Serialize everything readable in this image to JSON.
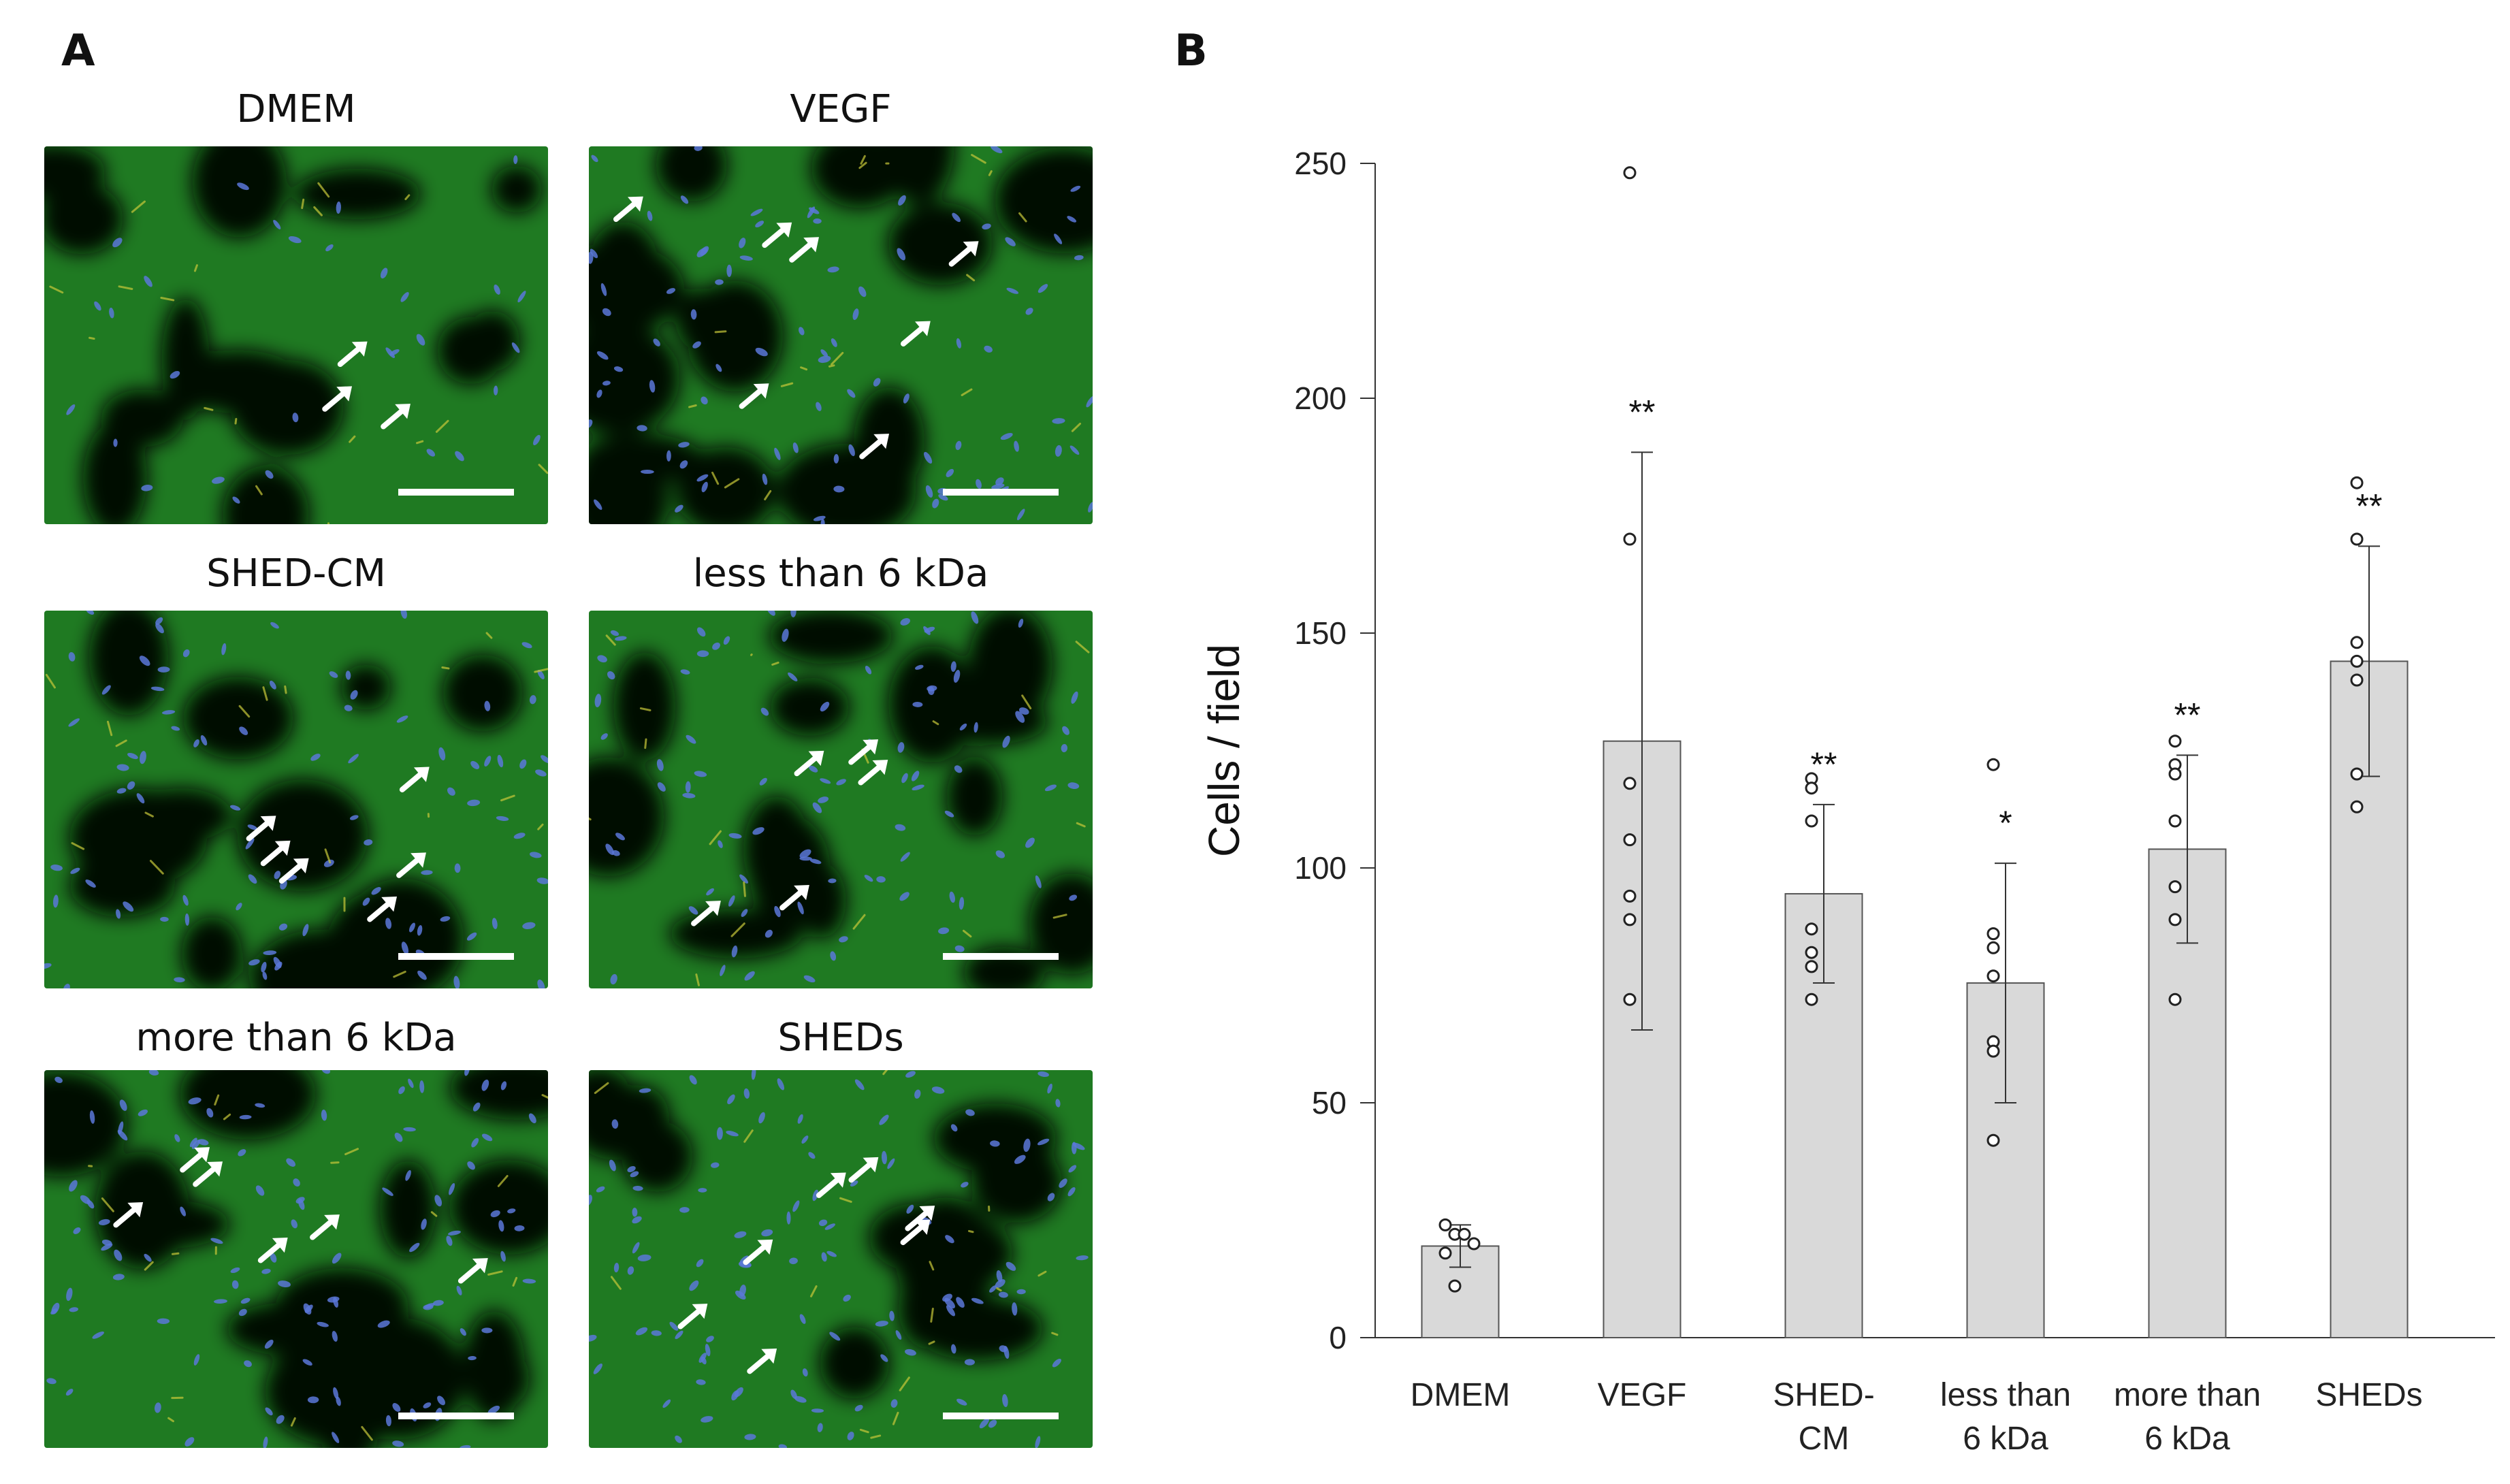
{
  "panel_labels": {
    "a": "A",
    "b": "B"
  },
  "micrographs": [
    {
      "title": "DMEM",
      "arrows": 3
    },
    {
      "title": "VEGF",
      "arrows": 7
    },
    {
      "title": "SHED-CM",
      "arrows": 6
    },
    {
      "title": "less than 6 kDa",
      "arrows": 5
    },
    {
      "title": "more than 6 kDa",
      "arrows": 6
    },
    {
      "title": "SHEDs",
      "arrows": 7
    }
  ],
  "colors": {
    "tissue_green": "#1f7a22",
    "dark_void": "#030703",
    "nuclei_blue": "#5a78d8",
    "vessel_yellow": "#c8c83a",
    "bar_fill": "#d9d9d9",
    "bar_stroke": "#555555"
  },
  "chart_data": {
    "type": "bar",
    "ylabel": "Cells / field",
    "xlabel": "",
    "ylim": [
      0,
      250
    ],
    "yticks": [
      0,
      50,
      100,
      150,
      200,
      250
    ],
    "categories": [
      [
        "DMEM"
      ],
      [
        "VEGF"
      ],
      [
        "SHED-",
        "CM"
      ],
      [
        "less than",
        "6 kDa"
      ],
      [
        "more than",
        "6 kDa"
      ],
      [
        "SHEDs"
      ]
    ],
    "values": [
      19.5,
      127,
      94.5,
      75.5,
      104,
      144
    ],
    "error": [
      4.5,
      61.5,
      19,
      25.5,
      20,
      24.5
    ],
    "significance": [
      "",
      "**",
      "**",
      "*",
      "**",
      "**"
    ],
    "points": [
      [
        24,
        22,
        22,
        20,
        18,
        11
      ],
      [
        248,
        170,
        118,
        106,
        94,
        89,
        72
      ],
      [
        119,
        117,
        110,
        87,
        82,
        79,
        72
      ],
      [
        122,
        86,
        83,
        77,
        63,
        61,
        42
      ],
      [
        127,
        122,
        120,
        110,
        96,
        89,
        72
      ],
      [
        182,
        170,
        148,
        144,
        140,
        120,
        113
      ]
    ]
  }
}
